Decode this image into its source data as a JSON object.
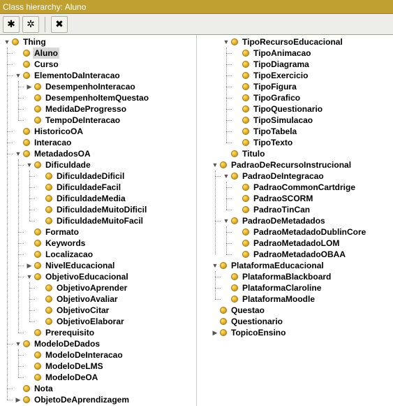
{
  "header": {
    "title": "Class hierarchy: Aluno"
  },
  "colors": {
    "header_bg": "#c0a030",
    "header_fg": "#ffffff",
    "bullet_fill": "#d4a017",
    "bullet_border": "#a07810",
    "selection_bg": "#d8d8d8",
    "tree_line": "#999999"
  },
  "glyphs": {
    "expanded": "▼",
    "collapsed": "▶",
    "leaf": ""
  },
  "toolbar": {
    "buttons": [
      {
        "name": "add-sibling-button",
        "glyph": "✱"
      },
      {
        "name": "add-child-button",
        "glyph": "✲"
      },
      {
        "name": "delete-button",
        "glyph": "✖"
      }
    ]
  },
  "left_tree": [
    {
      "label": "Thing",
      "state": "expanded",
      "children": [
        {
          "label": "Aluno",
          "state": "leaf",
          "selected": true
        },
        {
          "label": "Curso",
          "state": "leaf"
        },
        {
          "label": "ElementoDaInteracao",
          "state": "expanded",
          "children": [
            {
              "label": "DesempenhoInteracao",
              "state": "collapsed"
            },
            {
              "label": "DesempenhoItemQuestao",
              "state": "leaf"
            },
            {
              "label": "MedidaDeProgresso",
              "state": "leaf"
            },
            {
              "label": "TempoDeInteracao",
              "state": "leaf"
            }
          ]
        },
        {
          "label": "HistoricoOA",
          "state": "leaf"
        },
        {
          "label": "Interacao",
          "state": "leaf"
        },
        {
          "label": "MetadadosOA",
          "state": "expanded",
          "children": [
            {
              "label": "Dificuldade",
              "state": "expanded",
              "children": [
                {
                  "label": "DificuldadeDificil",
                  "state": "leaf"
                },
                {
                  "label": "DificuldadeFacil",
                  "state": "leaf"
                },
                {
                  "label": "DificuldadeMedia",
                  "state": "leaf"
                },
                {
                  "label": "DificuldadeMuitoDificil",
                  "state": "leaf"
                },
                {
                  "label": "DificuldadeMuitoFacil",
                  "state": "leaf"
                }
              ]
            },
            {
              "label": "Formato",
              "state": "leaf"
            },
            {
              "label": "Keywords",
              "state": "leaf"
            },
            {
              "label": "Localizacao",
              "state": "leaf"
            },
            {
              "label": "NivelEducacional",
              "state": "collapsed"
            },
            {
              "label": "ObjetivoEducacional",
              "state": "expanded",
              "children": [
                {
                  "label": "ObjetivoAprender",
                  "state": "leaf"
                },
                {
                  "label": "ObjetivoAvaliar",
                  "state": "leaf"
                },
                {
                  "label": "ObjetivoCitar",
                  "state": "leaf"
                },
                {
                  "label": "ObjetivoElaborar",
                  "state": "leaf"
                }
              ]
            },
            {
              "label": "Prerequisito",
              "state": "leaf"
            }
          ]
        },
        {
          "label": "ModeloDeDados",
          "state": "expanded",
          "children": [
            {
              "label": "ModeloDeInteracao",
              "state": "leaf"
            },
            {
              "label": "ModeloDeLMS",
              "state": "leaf"
            },
            {
              "label": "ModeloDeOA",
              "state": "leaf"
            }
          ]
        },
        {
          "label": "Nota",
          "state": "leaf"
        },
        {
          "label": "ObjetoDeAprendizagem",
          "state": "collapsed"
        }
      ]
    }
  ],
  "right_tree": [
    {
      "label": "TipoRecursoEducacional",
      "state": "expanded",
      "indent": 2,
      "children": [
        {
          "label": "TipoAnimacao",
          "state": "leaf"
        },
        {
          "label": "TipoDiagrama",
          "state": "leaf"
        },
        {
          "label": "TipoExercicio",
          "state": "leaf"
        },
        {
          "label": "TipoFigura",
          "state": "leaf"
        },
        {
          "label": "TipoGrafico",
          "state": "leaf"
        },
        {
          "label": "TipoQuestionario",
          "state": "leaf"
        },
        {
          "label": "TipoSimulacao",
          "state": "leaf"
        },
        {
          "label": "TipoTabela",
          "state": "leaf"
        },
        {
          "label": "TipoTexto",
          "state": "leaf"
        }
      ]
    },
    {
      "label": "Titulo",
      "state": "leaf",
      "indent": 2
    },
    {
      "label": "PadraoDeRecursoInstrucional",
      "state": "expanded",
      "indent": 1,
      "children": [
        {
          "label": "PadraoDeIntegracao",
          "state": "expanded",
          "children": [
            {
              "label": "PadraoCommonCartdrige",
              "state": "leaf"
            },
            {
              "label": "PadraoSCORM",
              "state": "leaf"
            },
            {
              "label": "PadraoTinCan",
              "state": "leaf"
            }
          ]
        },
        {
          "label": "PadraoDeMetadados",
          "state": "expanded",
          "children": [
            {
              "label": "PadraoMetadadoDublinCore",
              "state": "leaf"
            },
            {
              "label": "PadraoMetadadoLOM",
              "state": "leaf"
            },
            {
              "label": "PadraoMetadadoOBAA",
              "state": "leaf"
            }
          ]
        }
      ]
    },
    {
      "label": "PlataformaEducacional",
      "state": "expanded",
      "indent": 1,
      "children": [
        {
          "label": "PlataformaBlackboard",
          "state": "leaf"
        },
        {
          "label": "PlataformaClaroline",
          "state": "leaf"
        },
        {
          "label": "PlataformaMoodle",
          "state": "leaf"
        }
      ]
    },
    {
      "label": "Questao",
      "state": "leaf",
      "indent": 1
    },
    {
      "label": "Questionario",
      "state": "leaf",
      "indent": 1
    },
    {
      "label": "TopicoEnsino",
      "state": "collapsed",
      "indent": 1
    }
  ]
}
